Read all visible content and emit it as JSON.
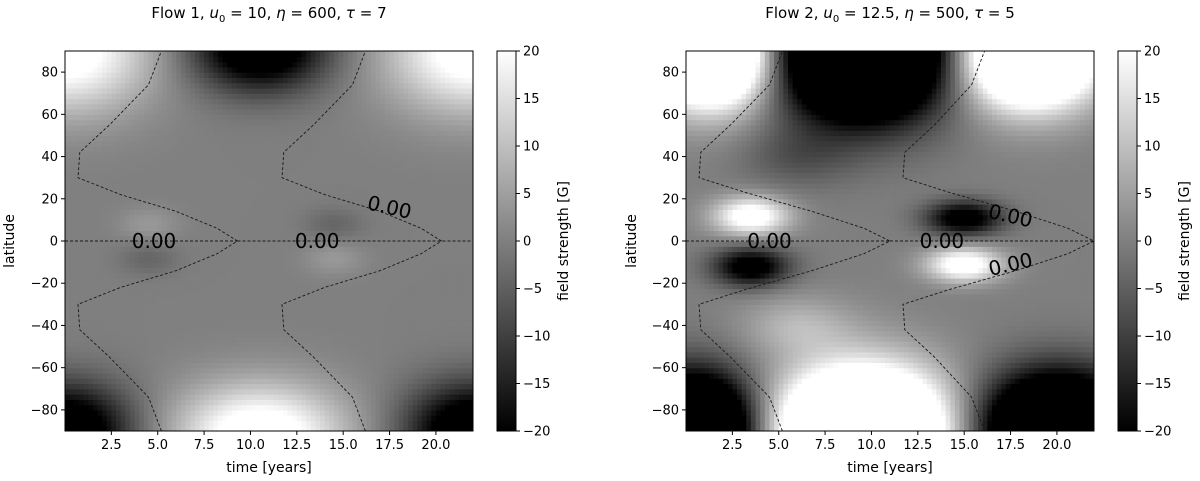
{
  "chart_data": [
    {
      "type": "heatmap",
      "title": {
        "prefix": "Flow 1, ",
        "u0": "10",
        "eta": "600",
        "tau": "7"
      },
      "xlabel": "time [years]",
      "ylabel": "latitude",
      "xlim": [
        0,
        22
      ],
      "ylim": [
        -90,
        90
      ],
      "x_ticks": [
        2.5,
        5.0,
        7.5,
        10.0,
        12.5,
        15.0,
        17.5,
        20.0
      ],
      "x_tick_labels": [
        "2.5",
        "5.0",
        "7.5",
        "10.0",
        "12.5",
        "15.0",
        "17.5",
        "20.0"
      ],
      "y_ticks": [
        80,
        60,
        40,
        20,
        0,
        -20,
        -40,
        -60,
        -80
      ],
      "y_tick_labels": [
        "80",
        "60",
        "40",
        "20",
        "0",
        "−20",
        "−40",
        "−60",
        "−80"
      ],
      "colorbar": {
        "label": "field strength [G]",
        "range": [
          -20,
          20
        ],
        "colormap": "gray",
        "ticks": [
          20,
          15,
          10,
          5,
          0,
          -5,
          -10,
          -15,
          -20
        ],
        "tick_labels": [
          "20",
          "15",
          "10",
          "5",
          "0",
          "−5",
          "−10",
          "−15",
          "−20"
        ]
      },
      "contour_level": 0.0,
      "contour_labels": [
        {
          "text": "0.00",
          "x": 4.8,
          "y": 0,
          "angle": 0
        },
        {
          "text": "0.00",
          "x": 13.6,
          "y": 0,
          "angle": 0
        },
        {
          "text": "0.00",
          "x": 17.5,
          "y": 16,
          "angle": 13
        }
      ],
      "contours": [
        [
          [
            5.2,
            -90
          ],
          [
            4.5,
            -74
          ],
          [
            2.4,
            -55
          ],
          [
            0.8,
            -42
          ],
          [
            0.7,
            -30
          ],
          [
            3.0,
            -22
          ],
          [
            6.0,
            -14
          ],
          [
            8.2,
            -6
          ],
          [
            9.3,
            0
          ],
          [
            8.2,
            6
          ],
          [
            6.0,
            14
          ],
          [
            3.0,
            22
          ],
          [
            0.7,
            30
          ],
          [
            0.8,
            42
          ],
          [
            2.4,
            55
          ],
          [
            4.5,
            74
          ],
          [
            5.2,
            90
          ]
        ],
        [
          [
            0,
            0
          ],
          [
            9.3,
            0
          ]
        ],
        [
          [
            16.2,
            -90
          ],
          [
            15.5,
            -74
          ],
          [
            13.4,
            -55
          ],
          [
            11.8,
            -42
          ],
          [
            11.7,
            -30
          ],
          [
            14.0,
            -22
          ],
          [
            17.0,
            -14
          ],
          [
            19.2,
            -6
          ],
          [
            20.3,
            0
          ],
          [
            19.2,
            6
          ],
          [
            17.0,
            14
          ],
          [
            14.0,
            22
          ],
          [
            11.7,
            30
          ],
          [
            11.8,
            42
          ],
          [
            13.4,
            55
          ],
          [
            15.5,
            74
          ],
          [
            16.2,
            90
          ]
        ],
        [
          [
            9.3,
            0
          ],
          [
            22,
            0
          ]
        ]
      ],
      "field_blobs": [
        {
          "x": 0.0,
          "y": 90,
          "sx": 4.5,
          "sy": 28,
          "v": 24
        },
        {
          "x": 22.0,
          "y": 90,
          "sx": 4.5,
          "sy": 28,
          "v": 24
        },
        {
          "x": 10.5,
          "y": 92,
          "sx": 3.5,
          "sy": 20,
          "v": -30
        },
        {
          "x": 0.0,
          "y": -90,
          "sx": 3.5,
          "sy": 22,
          "v": -30
        },
        {
          "x": 22.0,
          "y": -90,
          "sx": 3.5,
          "sy": 22,
          "v": -30
        },
        {
          "x": 10.5,
          "y": -92,
          "sx": 4.5,
          "sy": 24,
          "v": 26
        },
        {
          "x": 4.5,
          "y": 8,
          "sx": 1.6,
          "sy": 8,
          "v": 4
        },
        {
          "x": 4.5,
          "y": -8,
          "sx": 1.6,
          "sy": 8,
          "v": -4
        },
        {
          "x": 14.5,
          "y": 8,
          "sx": 1.6,
          "sy": 8,
          "v": -4
        },
        {
          "x": 14.5,
          "y": -8,
          "sx": 1.6,
          "sy": 8,
          "v": 4
        }
      ]
    },
    {
      "type": "heatmap",
      "title": {
        "prefix": "Flow 2, ",
        "u0": "12.5",
        "eta": "500",
        "tau": "5"
      },
      "xlabel": "time [years]",
      "ylabel": "latitude",
      "xlim": [
        0,
        22
      ],
      "ylim": [
        -90,
        90
      ],
      "x_ticks": [
        2.5,
        5.0,
        7.5,
        10.0,
        12.5,
        15.0,
        17.5,
        20.0
      ],
      "x_tick_labels": [
        "2.5",
        "5.0",
        "7.5",
        "10.0",
        "12.5",
        "15.0",
        "17.5",
        "20.0"
      ],
      "y_ticks": [
        80,
        60,
        40,
        20,
        0,
        -20,
        -40,
        -60,
        -80
      ],
      "y_tick_labels": [
        "80",
        "60",
        "40",
        "20",
        "0",
        "−20",
        "−40",
        "−60",
        "−80"
      ],
      "colorbar": {
        "label": "field strength [G]",
        "range": [
          -20,
          20
        ],
        "colormap": "gray",
        "ticks": [
          20,
          15,
          10,
          5,
          0,
          -5,
          -10,
          -15,
          -20
        ],
        "tick_labels": [
          "20",
          "15",
          "10",
          "5",
          "0",
          "−5",
          "−10",
          "−15",
          "−20"
        ]
      },
      "contour_level": 0.0,
      "contour_labels": [
        {
          "text": "0.00",
          "x": 4.5,
          "y": 0,
          "angle": 0
        },
        {
          "text": "0.00",
          "x": 13.8,
          "y": 0,
          "angle": 0
        },
        {
          "text": "0.00",
          "x": 17.5,
          "y": 12,
          "angle": 13
        },
        {
          "text": "0.00",
          "x": 17.5,
          "y": -11,
          "angle": -13
        }
      ],
      "contours": [
        [
          [
            5.2,
            -90
          ],
          [
            4.5,
            -74
          ],
          [
            2.4,
            -55
          ],
          [
            0.8,
            -42
          ],
          [
            0.7,
            -30
          ],
          [
            3.2,
            -23
          ],
          [
            6.8,
            -14
          ],
          [
            9.6,
            -6
          ],
          [
            11.0,
            0
          ],
          [
            9.6,
            6
          ],
          [
            6.8,
            14
          ],
          [
            3.2,
            23
          ],
          [
            0.7,
            30
          ],
          [
            0.8,
            42
          ],
          [
            2.4,
            55
          ],
          [
            4.5,
            74
          ],
          [
            5.2,
            90
          ]
        ],
        [
          [
            0,
            0
          ],
          [
            11.0,
            0
          ]
        ],
        [
          [
            16.1,
            -90
          ],
          [
            15.4,
            -74
          ],
          [
            13.4,
            -55
          ],
          [
            11.8,
            -42
          ],
          [
            11.7,
            -30
          ],
          [
            14.2,
            -23
          ],
          [
            17.8,
            -14
          ],
          [
            20.6,
            -6
          ],
          [
            22.0,
            0
          ],
          [
            20.6,
            6
          ],
          [
            17.8,
            14
          ],
          [
            14.2,
            23
          ],
          [
            11.7,
            30
          ],
          [
            11.8,
            42
          ],
          [
            13.4,
            55
          ],
          [
            15.4,
            74
          ],
          [
            16.1,
            90
          ]
        ],
        [
          [
            11.0,
            0
          ],
          [
            22,
            0
          ]
        ]
      ],
      "field_blobs": [
        {
          "x": 1.5,
          "y": 90,
          "sx": 3.2,
          "sy": 25,
          "v": 60
        },
        {
          "x": 18.5,
          "y": 90,
          "sx": 3.6,
          "sy": 25,
          "v": 60
        },
        {
          "x": 9.5,
          "y": 92,
          "sx": 4.5,
          "sy": 32,
          "v": -70
        },
        {
          "x": 0.5,
          "y": -90,
          "sx": 3.2,
          "sy": 26,
          "v": -60
        },
        {
          "x": 20.0,
          "y": -90,
          "sx": 4.0,
          "sy": 26,
          "v": -60
        },
        {
          "x": 9.5,
          "y": -92,
          "sx": 4.5,
          "sy": 30,
          "v": 70
        },
        {
          "x": 3.5,
          "y": 12,
          "sx": 2.0,
          "sy": 9,
          "v": 25
        },
        {
          "x": 3.5,
          "y": -12,
          "sx": 2.0,
          "sy": 9,
          "v": -25
        },
        {
          "x": 15.0,
          "y": 11,
          "sx": 2.0,
          "sy": 8,
          "v": -25
        },
        {
          "x": 15.0,
          "y": -11,
          "sx": 2.0,
          "sy": 8,
          "v": 25
        },
        {
          "x": 6.0,
          "y": 40,
          "sx": 3.0,
          "sy": 14,
          "v": -6
        },
        {
          "x": 6.0,
          "y": -40,
          "sx": 3.0,
          "sy": 14,
          "v": 8
        }
      ]
    }
  ]
}
